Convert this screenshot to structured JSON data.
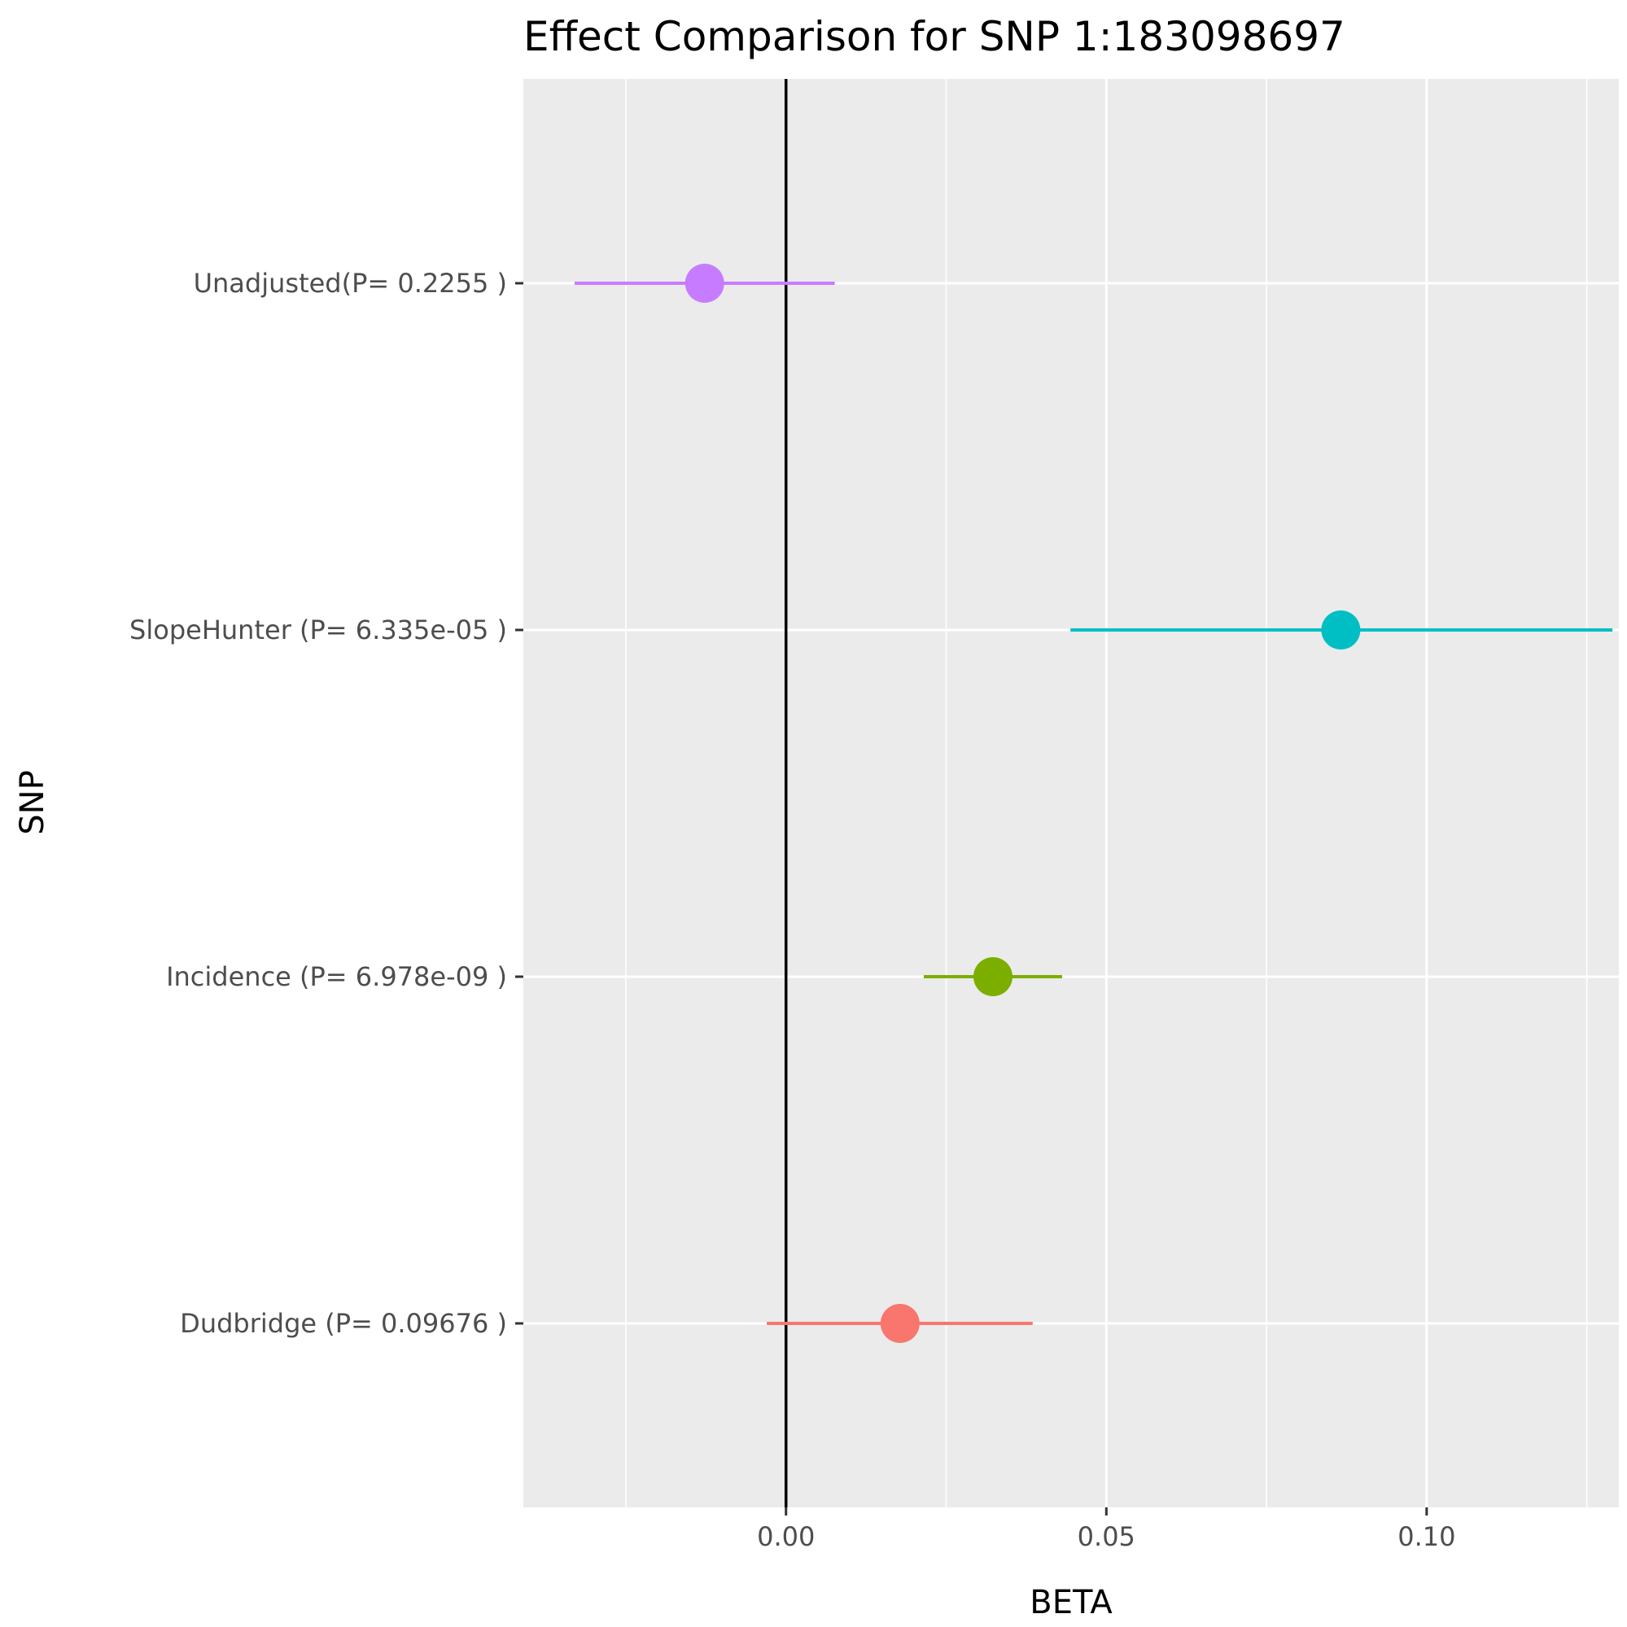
{
  "chart_data": {
    "type": "forest",
    "title": "Effect Comparison for SNP 1:183098697",
    "xlabel": "BETA",
    "ylabel": "SNP",
    "xlim": [
      -0.041,
      0.13
    ],
    "x_ticks": [
      0.0,
      0.05,
      0.1
    ],
    "x_tick_labels": [
      "0.00",
      "0.05",
      "0.10"
    ],
    "reference_line": 0,
    "grid": true,
    "legend": "none",
    "categories": [
      "Dudbridge (P= 0.09676 )",
      "Incidence (P= 6.978e-09 )",
      "SlopeHunter (P= 6.335e-05 )",
      "Unadjusted(P= 0.2255 )"
    ],
    "points": [
      {
        "label": "Dudbridge (P= 0.09676 )",
        "beta": 0.0178,
        "lower": -0.003,
        "upper": 0.0385,
        "color": "#F8766D"
      },
      {
        "label": "Incidence (P= 6.978e-09 )",
        "beta": 0.0323,
        "lower": 0.0215,
        "upper": 0.0431,
        "color": "#7CAE00"
      },
      {
        "label": "SlopeHunter (P= 6.335e-05 )",
        "beta": 0.0866,
        "lower": 0.0444,
        "upper": 0.129,
        "color": "#00BFC4"
      },
      {
        "label": "Unadjusted(P= 0.2255 )",
        "beta": -0.0127,
        "lower": -0.033,
        "upper": 0.0076,
        "color": "#C77CFF"
      }
    ]
  }
}
